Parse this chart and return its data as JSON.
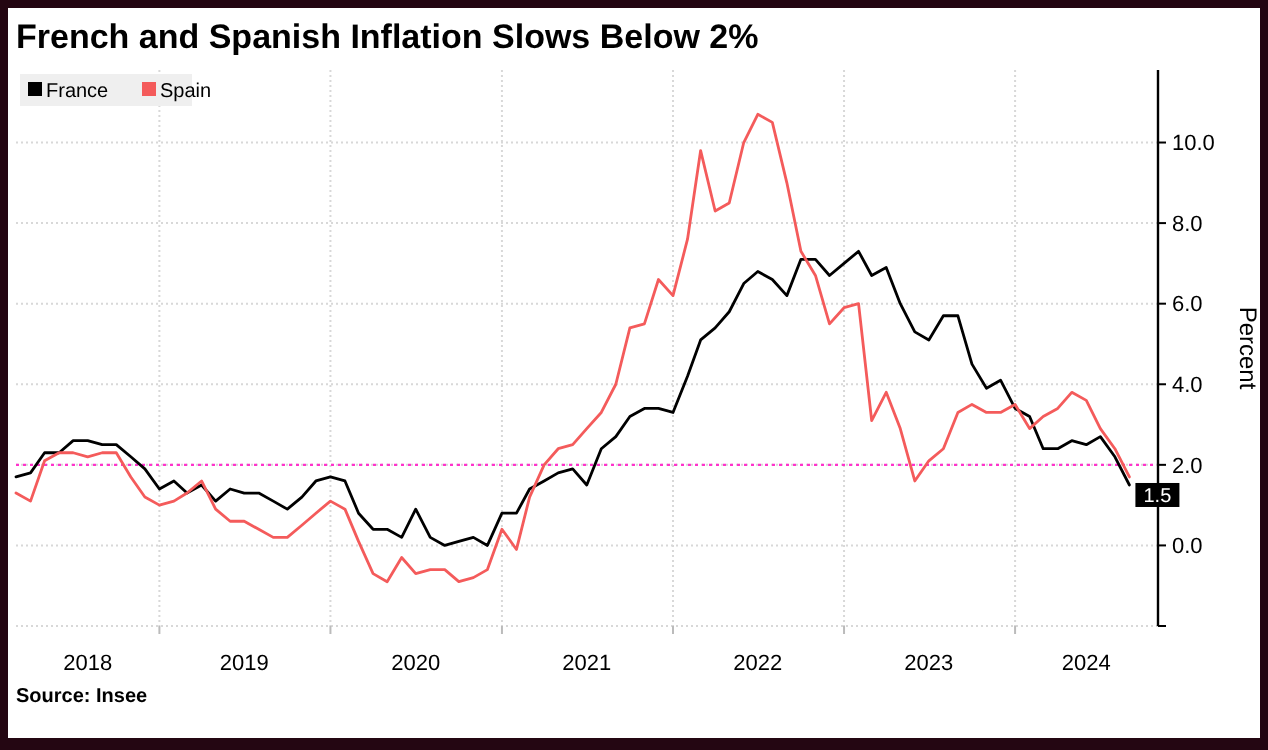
{
  "chart_data": {
    "type": "line",
    "title": "French and Spanish Inflation Slows Below 2%",
    "ylabel": "Percent",
    "annotations": [
      "Source: Insee"
    ],
    "x": [
      "2018-03",
      "2018-04",
      "2018-05",
      "2018-06",
      "2018-07",
      "2018-08",
      "2018-09",
      "2018-10",
      "2018-11",
      "2018-12",
      "2019-01",
      "2019-02",
      "2019-03",
      "2019-04",
      "2019-05",
      "2019-06",
      "2019-07",
      "2019-08",
      "2019-09",
      "2019-10",
      "2019-11",
      "2019-12",
      "2020-01",
      "2020-02",
      "2020-03",
      "2020-04",
      "2020-05",
      "2020-06",
      "2020-07",
      "2020-08",
      "2020-09",
      "2020-10",
      "2020-11",
      "2020-12",
      "2021-01",
      "2021-02",
      "2021-03",
      "2021-04",
      "2021-05",
      "2021-06",
      "2021-07",
      "2021-08",
      "2021-09",
      "2021-10",
      "2021-11",
      "2021-12",
      "2022-01",
      "2022-02",
      "2022-03",
      "2022-04",
      "2022-05",
      "2022-06",
      "2022-07",
      "2022-08",
      "2022-09",
      "2022-10",
      "2022-11",
      "2022-12",
      "2023-01",
      "2023-02",
      "2023-03",
      "2023-04",
      "2023-05",
      "2023-06",
      "2023-07",
      "2023-08",
      "2023-09",
      "2023-10",
      "2023-11",
      "2023-12",
      "2024-01",
      "2024-02",
      "2024-03",
      "2024-04",
      "2024-05",
      "2024-06",
      "2024-07",
      "2024-08",
      "2024-09"
    ],
    "series": [
      {
        "name": "France",
        "color": "#000000",
        "values": [
          1.7,
          1.8,
          2.3,
          2.3,
          2.6,
          2.6,
          2.5,
          2.5,
          2.2,
          1.9,
          1.4,
          1.6,
          1.3,
          1.5,
          1.1,
          1.4,
          1.3,
          1.3,
          1.1,
          0.9,
          1.2,
          1.6,
          1.7,
          1.6,
          0.8,
          0.4,
          0.4,
          0.2,
          0.9,
          0.2,
          0.0,
          0.1,
          0.2,
          0.0,
          0.8,
          0.8,
          1.4,
          1.6,
          1.8,
          1.9,
          1.5,
          2.4,
          2.7,
          3.2,
          3.4,
          3.4,
          3.3,
          4.2,
          5.1,
          5.4,
          5.8,
          6.5,
          6.8,
          6.6,
          6.2,
          7.1,
          7.1,
          6.7,
          7.0,
          7.3,
          6.7,
          6.9,
          6.0,
          5.3,
          5.1,
          5.7,
          5.7,
          4.5,
          3.9,
          4.1,
          3.4,
          3.2,
          2.4,
          2.4,
          2.6,
          2.5,
          2.7,
          2.2,
          1.5
        ],
        "value_labels": [
          null,
          null,
          null,
          null,
          null,
          null,
          null,
          null,
          null,
          null,
          null,
          null,
          null,
          null,
          null,
          null,
          null,
          null,
          null,
          null,
          null,
          null,
          null,
          null,
          null,
          null,
          null,
          null,
          null,
          null,
          null,
          null,
          null,
          null,
          null,
          null,
          null,
          null,
          null,
          null,
          null,
          null,
          null,
          null,
          null,
          null,
          null,
          null,
          null,
          null,
          null,
          null,
          null,
          null,
          null,
          null,
          null,
          null,
          null,
          null,
          null,
          null,
          null,
          null,
          null,
          null,
          null,
          null,
          null,
          null,
          null,
          null,
          null,
          null,
          null,
          null,
          null,
          null,
          "1.5"
        ]
      },
      {
        "name": "Spain",
        "color": "#f45b5b",
        "values": [
          1.3,
          1.1,
          2.1,
          2.3,
          2.3,
          2.2,
          2.3,
          2.3,
          1.7,
          1.2,
          1.0,
          1.1,
          1.3,
          1.6,
          0.9,
          0.6,
          0.6,
          0.4,
          0.2,
          0.2,
          0.5,
          0.8,
          1.1,
          0.9,
          0.1,
          -0.7,
          -0.9,
          -0.3,
          -0.7,
          -0.6,
          -0.6,
          -0.9,
          -0.8,
          -0.6,
          0.4,
          -0.1,
          1.2,
          2.0,
          2.4,
          2.5,
          2.9,
          3.3,
          4.0,
          5.4,
          5.5,
          6.6,
          6.2,
          7.6,
          9.8,
          8.3,
          8.5,
          10.0,
          10.7,
          10.5,
          9.0,
          7.3,
          6.7,
          5.5,
          5.9,
          6.0,
          3.1,
          3.8,
          2.9,
          1.6,
          2.1,
          2.4,
          3.3,
          3.5,
          3.3,
          3.3,
          3.5,
          2.9,
          3.2,
          3.4,
          3.8,
          3.6,
          2.9,
          2.4,
          1.7
        ]
      }
    ],
    "xlim": [
      "2018-03",
      "2024-11"
    ],
    "xticks": [
      {
        "value": "2018-08",
        "label": "2018"
      },
      {
        "value": "2019-01",
        "label": null
      },
      {
        "value": "2019-07",
        "label": "2019"
      },
      {
        "value": "2020-01",
        "label": null
      },
      {
        "value": "2020-07",
        "label": "2020"
      },
      {
        "value": "2021-01",
        "label": null
      },
      {
        "value": "2021-07",
        "label": "2021"
      },
      {
        "value": "2022-01",
        "label": null
      },
      {
        "value": "2022-07",
        "label": "2022"
      },
      {
        "value": "2023-01",
        "label": null
      },
      {
        "value": "2023-07",
        "label": "2023"
      },
      {
        "value": "2024-01",
        "label": null
      },
      {
        "value": "2024-06",
        "label": "2024"
      }
    ],
    "ylim": [
      -2,
      11.8
    ],
    "yticks": [
      {
        "value": -2,
        "label": null
      },
      {
        "value": 0,
        "label": "0.0"
      },
      {
        "value": 2,
        "label": "2.0"
      },
      {
        "value": 4,
        "label": "4.0"
      },
      {
        "value": 6,
        "label": "6.0"
      },
      {
        "value": 8,
        "label": "8.0"
      },
      {
        "value": 10,
        "label": "10.0"
      }
    ],
    "ref_lines": [
      {
        "axis": "y",
        "value": 2,
        "color": "#ff33cc",
        "line_style": "dotted"
      }
    ],
    "grid": true,
    "legend": "top left",
    "line_style": "solid",
    "marker": "none"
  }
}
